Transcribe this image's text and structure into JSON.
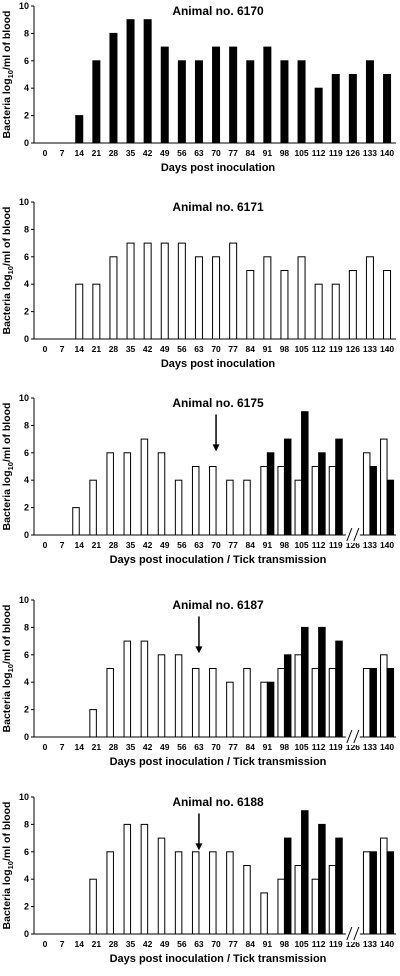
{
  "chart_data": [
    {
      "type": "bar",
      "title": "Animal no. 6170",
      "xlabel": "Days post inoculation",
      "ylabel_pre": "Bacteria log",
      "ylabel_sub": "10",
      "ylabel_post": "/ml of blood",
      "ylim": [
        0,
        10
      ],
      "yticks": [
        "0",
        "2",
        "4",
        "6",
        "8",
        "10"
      ],
      "categories": [
        "0",
        "7",
        "14",
        "21",
        "28",
        "35",
        "42",
        "49",
        "56",
        "63",
        "70",
        "77",
        "84",
        "91",
        "98",
        "105",
        "112",
        "119",
        "126",
        "133",
        "140"
      ],
      "axis_break": false,
      "series": [
        {
          "fill": "#000000",
          "values": [
            null,
            null,
            2,
            6,
            8,
            9,
            9,
            7,
            6,
            6,
            7,
            7,
            6,
            7,
            6,
            6,
            4,
            5,
            5,
            6,
            5
          ]
        }
      ]
    },
    {
      "type": "bar",
      "title": "Animal no. 6171",
      "xlabel": "Days post inoculation",
      "ylabel_pre": "Bacteria log",
      "ylabel_sub": "10",
      "ylabel_post": "/ml of blood",
      "ylim": [
        0,
        10
      ],
      "yticks": [
        "0",
        "2",
        "4",
        "6",
        "8",
        "10"
      ],
      "categories": [
        "0",
        "7",
        "14",
        "21",
        "28",
        "35",
        "42",
        "49",
        "56",
        "63",
        "70",
        "77",
        "84",
        "91",
        "98",
        "105",
        "112",
        "119",
        "126",
        "133",
        "140"
      ],
      "axis_break": false,
      "series": [
        {
          "fill": "#ffffff",
          "values": [
            null,
            null,
            4,
            4,
            6,
            7,
            7,
            7,
            7,
            6,
            6,
            7,
            5,
            6,
            5,
            6,
            4,
            4,
            5,
            6,
            5
          ]
        }
      ]
    },
    {
      "type": "bar",
      "title": "Animal no. 6175",
      "xlabel": "Days post inoculation / Tick transmission",
      "ylabel_pre": "Bacteria log",
      "ylabel_sub": "10",
      "ylabel_post": "/ml of blood",
      "ylim": [
        0,
        10
      ],
      "yticks": [
        "0",
        "2",
        "4",
        "6",
        "8",
        "10"
      ],
      "categories": [
        "0",
        "7",
        "14",
        "21",
        "28",
        "35",
        "42",
        "49",
        "56",
        "63",
        "70",
        "77",
        "84",
        "91",
        "98",
        "105",
        "112",
        "119",
        "126",
        "133",
        "140"
      ],
      "axis_break": true,
      "arrow_at": "70",
      "series": [
        {
          "fill": "#ffffff",
          "values": [
            null,
            null,
            2,
            4,
            6,
            6,
            7,
            6,
            4,
            5,
            5,
            4,
            4,
            5,
            5,
            4,
            5,
            5,
            null,
            6,
            7
          ]
        },
        {
          "fill": "#000000",
          "values": [
            null,
            null,
            null,
            null,
            null,
            null,
            null,
            null,
            null,
            null,
            null,
            null,
            null,
            6,
            7,
            9,
            6,
            7,
            null,
            5,
            4
          ]
        }
      ]
    },
    {
      "type": "bar",
      "title": "Animal no. 6187",
      "xlabel": "Days post inoculation / Tick transmission",
      "ylabel_pre": "Bacteria log",
      "ylabel_sub": "10",
      "ylabel_post": "/ml of blood",
      "ylim": [
        0,
        10
      ],
      "yticks": [
        "0",
        "2",
        "4",
        "6",
        "8",
        "10"
      ],
      "categories": [
        "0",
        "7",
        "14",
        "21",
        "28",
        "35",
        "42",
        "49",
        "56",
        "63",
        "70",
        "77",
        "84",
        "91",
        "98",
        "105",
        "112",
        "119",
        "126",
        "133",
        "140"
      ],
      "axis_break": true,
      "arrow_at": "63",
      "series": [
        {
          "fill": "#ffffff",
          "values": [
            null,
            null,
            null,
            2,
            5,
            7,
            7,
            6,
            6,
            5,
            5,
            4,
            5,
            4,
            5,
            6,
            5,
            5,
            null,
            5,
            6
          ]
        },
        {
          "fill": "#000000",
          "values": [
            null,
            null,
            null,
            null,
            null,
            null,
            null,
            null,
            null,
            null,
            null,
            null,
            null,
            4,
            6,
            8,
            8,
            7,
            null,
            5,
            5
          ]
        }
      ]
    },
    {
      "type": "bar",
      "title": "Animal no. 6188",
      "xlabel": "Days post inoculation / Tick transmission",
      "ylabel_pre": "Bacteria log",
      "ylabel_sub": "10",
      "ylabel_post": "/ml of blood",
      "ylim": [
        0,
        10
      ],
      "yticks": [
        "0",
        "2",
        "4",
        "6",
        "8",
        "10"
      ],
      "categories": [
        "0",
        "7",
        "14",
        "21",
        "28",
        "35",
        "42",
        "49",
        "56",
        "63",
        "70",
        "77",
        "84",
        "91",
        "98",
        "105",
        "112",
        "119",
        "126",
        "133",
        "140"
      ],
      "axis_break": true,
      "arrow_at": "63",
      "series": [
        {
          "fill": "#ffffff",
          "values": [
            null,
            null,
            null,
            4,
            6,
            8,
            8,
            7,
            6,
            6,
            6,
            6,
            5,
            3,
            4,
            5,
            4,
            5,
            null,
            6,
            7
          ]
        },
        {
          "fill": "#000000",
          "values": [
            null,
            null,
            null,
            null,
            null,
            null,
            null,
            null,
            null,
            null,
            null,
            null,
            null,
            null,
            7,
            9,
            8,
            7,
            null,
            6,
            6
          ]
        }
      ]
    }
  ]
}
